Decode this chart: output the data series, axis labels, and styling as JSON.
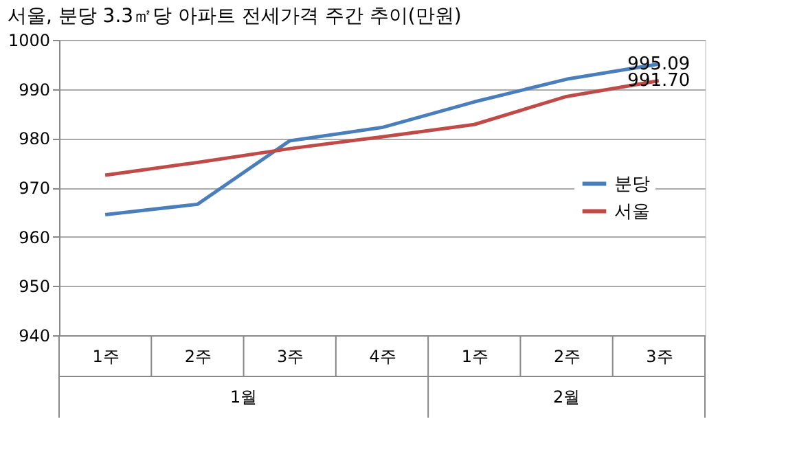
{
  "chart_data": {
    "type": "line",
    "title": "서울, 분당 3.3㎡당 아파트 전세가격 주간 추이(만원)",
    "categories": [
      "1주",
      "2주",
      "3주",
      "4주",
      "1주",
      "2주",
      "3주"
    ],
    "series": [
      {
        "name": "분당",
        "color": "#4a7ebb",
        "values": [
          964.5,
          966.6,
          979.5,
          982.2,
          987.4,
          992.0,
          995.09
        ],
        "value_labels": [
          null,
          null,
          null,
          null,
          null,
          null,
          "995.09"
        ]
      },
      {
        "name": "서울",
        "color": "#be4b48",
        "values": [
          972.5,
          975.1,
          977.9,
          980.3,
          982.8,
          988.5,
          991.7
        ],
        "value_labels": [
          null,
          null,
          null,
          null,
          null,
          null,
          "991.70"
        ]
      }
    ],
    "ylim": [
      940,
      1000
    ],
    "yticks": [
      940,
      950,
      960,
      970,
      980,
      990,
      1000
    ],
    "grid": "y",
    "legend": "right",
    "marker": "none",
    "line_style": "solid",
    "annotations": [
      "1월",
      "2월"
    ]
  }
}
